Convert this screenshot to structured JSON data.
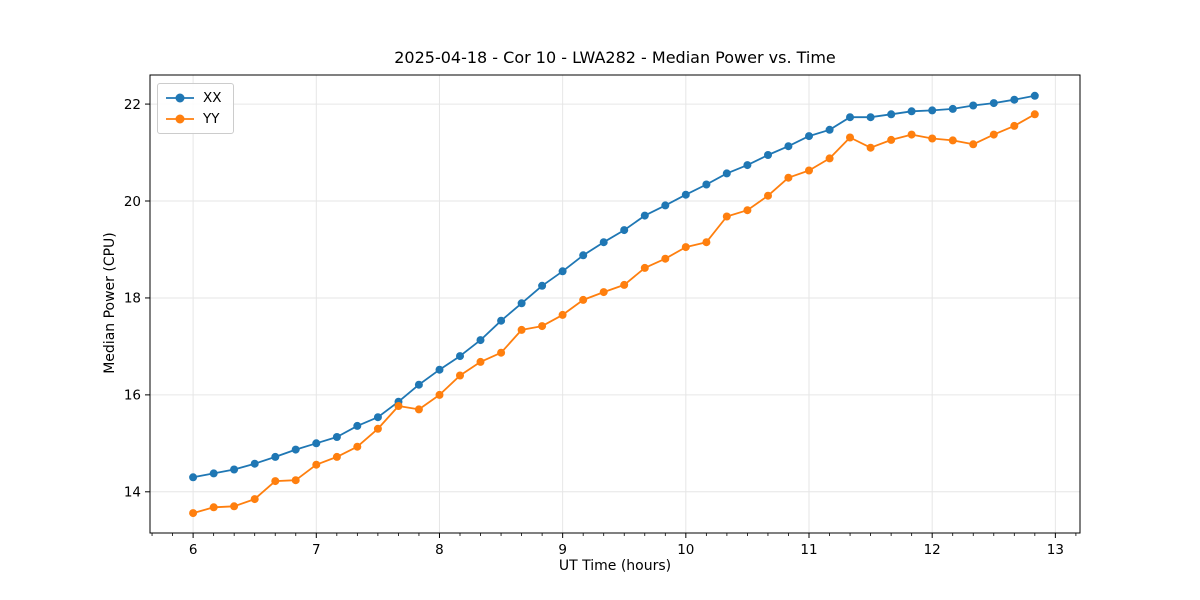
{
  "chart_data": {
    "type": "line",
    "title": "2025-04-18 - Cor 10 - LWA282 - Median Power vs. Time",
    "xlabel": "UT Time (hours)",
    "ylabel": "Median Power (CPU)",
    "xlim": [
      5.65,
      13.2
    ],
    "ylim": [
      13.15,
      22.6
    ],
    "xticks": [
      6,
      7,
      8,
      9,
      10,
      11,
      12,
      13
    ],
    "yticks": [
      14,
      16,
      18,
      20,
      22
    ],
    "minor_xtick_step": 0.1666667,
    "grid": true,
    "grid_color": "#e6e6e6",
    "spine_color": "#000000",
    "legend_position": "upper-left",
    "x": [
      6.0,
      6.167,
      6.333,
      6.5,
      6.667,
      6.833,
      7.0,
      7.167,
      7.333,
      7.5,
      7.667,
      7.833,
      8.0,
      8.167,
      8.333,
      8.5,
      8.667,
      8.833,
      9.0,
      9.167,
      9.333,
      9.5,
      9.667,
      9.833,
      10.0,
      10.167,
      10.333,
      10.5,
      10.667,
      10.833,
      11.0,
      11.167,
      11.333,
      11.5,
      11.667,
      11.833,
      12.0,
      12.167,
      12.333,
      12.5,
      12.667,
      12.833
    ],
    "series": [
      {
        "name": "XX",
        "color": "#1f77b4",
        "values": [
          14.3,
          14.38,
          14.46,
          14.58,
          14.72,
          14.87,
          15.0,
          15.13,
          15.36,
          15.54,
          15.86,
          16.21,
          16.52,
          16.8,
          17.13,
          17.53,
          17.89,
          18.25,
          18.55,
          18.88,
          19.15,
          19.4,
          19.7,
          19.91,
          20.13,
          20.34,
          20.57,
          20.74,
          20.95,
          21.13,
          21.34,
          21.47,
          21.73,
          21.73,
          21.79,
          21.85,
          21.87,
          21.9,
          21.97,
          22.02,
          22.09,
          22.17
        ]
      },
      {
        "name": "YY",
        "color": "#ff7f0e",
        "values": [
          13.56,
          13.68,
          13.7,
          13.85,
          14.22,
          14.24,
          14.56,
          14.72,
          14.93,
          15.3,
          15.77,
          15.7,
          16.0,
          16.4,
          16.68,
          16.87,
          17.34,
          17.42,
          17.65,
          17.96,
          18.12,
          18.27,
          18.62,
          18.81,
          19.05,
          19.15,
          19.68,
          19.81,
          20.11,
          20.48,
          20.63,
          20.88,
          21.31,
          21.1,
          21.26,
          21.37,
          21.29,
          21.25,
          21.17,
          21.37,
          21.55,
          21.79
        ]
      }
    ]
  }
}
